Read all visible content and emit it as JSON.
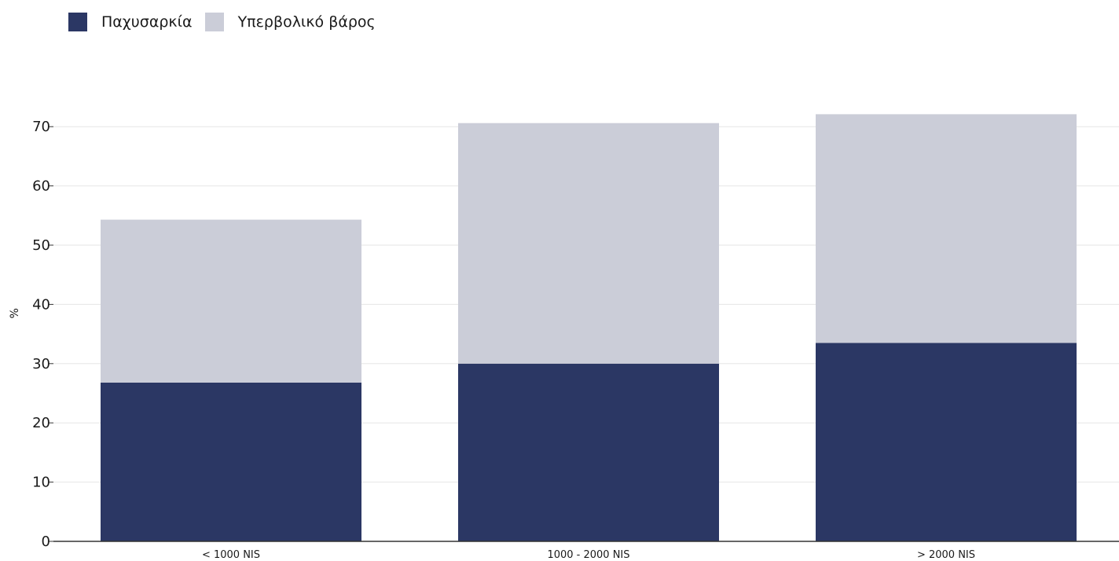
{
  "chart_data": {
    "type": "bar",
    "stacked": true,
    "title": "",
    "xlabel": "",
    "ylabel": "%",
    "categories": [
      "< 1000 NIS",
      "1000 - 2000 NIS",
      "> 2000 NIS"
    ],
    "series": [
      {
        "name": "Παχυσαρκία",
        "color": "#2b3764",
        "values": [
          26.8,
          30.0,
          33.5
        ]
      },
      {
        "name": "Υπερβολικό βάρος",
        "color": "#cbcdd8",
        "values": [
          27.5,
          40.6,
          38.6
        ]
      }
    ],
    "ylim": [
      0,
      72
    ],
    "yticks": [
      0,
      10,
      20,
      30,
      40,
      50,
      60,
      70
    ],
    "grid": true,
    "legend_position": "top-left"
  }
}
